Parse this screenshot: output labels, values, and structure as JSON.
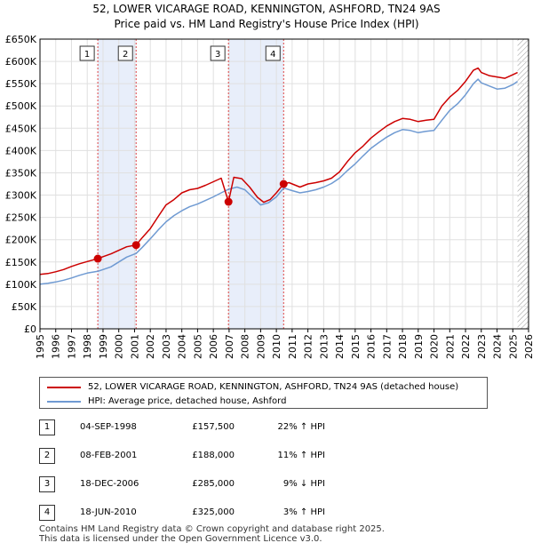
{
  "chart_data": {
    "type": "line",
    "title": "52, LOWER VICARAGE ROAD, KENNINGTON, ASHFORD, TN24 9AS",
    "subtitle": "Price paid vs. HM Land Registry's House Price Index (HPI)",
    "xlim": [
      1995,
      2026
    ],
    "ylim": [
      0,
      650000
    ],
    "x_ticks": [
      "1995",
      "1996",
      "1997",
      "1998",
      "1999",
      "2000",
      "2001",
      "2002",
      "2003",
      "2004",
      "2005",
      "2006",
      "2007",
      "2008",
      "2009",
      "2010",
      "2011",
      "2012",
      "2013",
      "2014",
      "2015",
      "2016",
      "2017",
      "2018",
      "2019",
      "2020",
      "2021",
      "2022",
      "2023",
      "2024",
      "2025",
      "2026"
    ],
    "y_ticks": [
      {
        "value": 0,
        "label": "£0"
      },
      {
        "value": 50000,
        "label": "£50K"
      },
      {
        "value": 100000,
        "label": "£100K"
      },
      {
        "value": 150000,
        "label": "£150K"
      },
      {
        "value": 200000,
        "label": "£200K"
      },
      {
        "value": 250000,
        "label": "£250K"
      },
      {
        "value": 300000,
        "label": "£300K"
      },
      {
        "value": 350000,
        "label": "£350K"
      },
      {
        "value": 400000,
        "label": "£400K"
      },
      {
        "value": 450000,
        "label": "£450K"
      },
      {
        "value": 500000,
        "label": "£500K"
      },
      {
        "value": 550000,
        "label": "£550K"
      },
      {
        "value": 600000,
        "label": "£600K"
      },
      {
        "value": 650000,
        "label": "£650K"
      }
    ],
    "series": [
      {
        "name": "52, LOWER VICARAGE ROAD, KENNINGTON, ASHFORD, TN24 9AS (detached house)",
        "color": "#cc0000",
        "x": [
          1995.0,
          1995.5,
          1996.0,
          1996.5,
          1997.0,
          1997.5,
          1998.0,
          1998.67,
          1999.0,
          1999.5,
          2000.0,
          2000.5,
          2001.1,
          2001.5,
          2002.0,
          2002.5,
          2003.0,
          2003.5,
          2004.0,
          2004.5,
          2005.0,
          2005.5,
          2006.0,
          2006.5,
          2006.96,
          2007.3,
          2007.8,
          2008.3,
          2008.8,
          2009.2,
          2009.6,
          2010.0,
          2010.46,
          2010.8,
          2011.5,
          2012.0,
          2012.5,
          2013.0,
          2013.5,
          2014.0,
          2014.5,
          2015.0,
          2015.5,
          2016.0,
          2016.5,
          2017.0,
          2017.5,
          2018.0,
          2018.5,
          2019.0,
          2019.5,
          2020.0,
          2020.5,
          2021.0,
          2021.5,
          2022.0,
          2022.5,
          2022.8,
          2023.0,
          2023.5,
          2024.0,
          2024.5,
          2025.0,
          2025.3
        ],
        "y": [
          122000,
          124000,
          128000,
          133000,
          140000,
          146000,
          151000,
          157500,
          162000,
          168000,
          176000,
          184000,
          188000,
          205000,
          225000,
          252000,
          278000,
          290000,
          305000,
          312000,
          315000,
          322000,
          330000,
          338000,
          285000,
          340000,
          337000,
          318000,
          295000,
          284000,
          290000,
          305000,
          325000,
          328000,
          318000,
          325000,
          328000,
          332000,
          338000,
          352000,
          375000,
          395000,
          410000,
          428000,
          442000,
          455000,
          465000,
          472000,
          470000,
          465000,
          468000,
          470000,
          500000,
          520000,
          535000,
          555000,
          580000,
          585000,
          575000,
          568000,
          565000,
          562000,
          570000,
          575000
        ]
      },
      {
        "name": "HPI: Average price, detached house, Ashford",
        "color": "#6f9ad2",
        "x": [
          1995.0,
          1995.5,
          1996.0,
          1996.5,
          1997.0,
          1997.5,
          1998.0,
          1998.67,
          1999.0,
          1999.5,
          2000.0,
          2000.5,
          2001.1,
          2001.5,
          2002.0,
          2002.5,
          2003.0,
          2003.5,
          2004.0,
          2004.5,
          2005.0,
          2005.5,
          2006.0,
          2006.5,
          2006.96,
          2007.5,
          2008.0,
          2008.5,
          2009.0,
          2009.5,
          2010.0,
          2010.46,
          2011.0,
          2011.5,
          2012.0,
          2012.5,
          2013.0,
          2013.5,
          2014.0,
          2014.5,
          2015.0,
          2015.5,
          2016.0,
          2016.5,
          2017.0,
          2017.5,
          2018.0,
          2018.5,
          2019.0,
          2019.5,
          2020.0,
          2020.5,
          2021.0,
          2021.5,
          2022.0,
          2022.5,
          2022.8,
          2023.0,
          2023.5,
          2024.0,
          2024.5,
          2025.0,
          2025.3
        ],
        "y": [
          100000,
          102000,
          105000,
          109000,
          114000,
          120000,
          125000,
          129000,
          133000,
          139000,
          150000,
          161000,
          169000,
          183000,
          202000,
          222000,
          240000,
          254000,
          265000,
          274000,
          280000,
          288000,
          296000,
          305000,
          313000,
          318000,
          312000,
          295000,
          278000,
          283000,
          296000,
          316000,
          310000,
          305000,
          308000,
          312000,
          318000,
          326000,
          338000,
          355000,
          370000,
          388000,
          405000,
          418000,
          430000,
          440000,
          447000,
          445000,
          440000,
          443000,
          445000,
          468000,
          490000,
          505000,
          525000,
          550000,
          560000,
          552000,
          545000,
          538000,
          540000,
          548000,
          555000
        ]
      }
    ],
    "sales": [
      {
        "num": "1",
        "x": 1998.67,
        "value": 157500,
        "date": "04-SEP-1998",
        "price": "£157,500",
        "hpi": "22% ↑ HPI"
      },
      {
        "num": "2",
        "x": 2001.1,
        "value": 188000,
        "date": "08-FEB-2001",
        "price": "£188,000",
        "hpi": "11% ↑ HPI"
      },
      {
        "num": "3",
        "x": 2006.96,
        "value": 285000,
        "date": "18-DEC-2006",
        "price": "£285,000",
        "hpi": "9% ↓ HPI"
      },
      {
        "num": "4",
        "x": 2010.46,
        "value": 325000,
        "date": "18-JUN-2010",
        "price": "£325,000",
        "hpi": "3% ↑ HPI"
      }
    ],
    "shaded_spans": [
      [
        1998.67,
        2001.1
      ],
      [
        2006.96,
        2010.46
      ]
    ],
    "forecast_from": 2025.3,
    "colors": {
      "grid": "#e0e0e0",
      "shade": "#e8eefa",
      "vline": "#dd4444",
      "hatch": "#999999"
    }
  },
  "legend": {
    "property_label": "52, LOWER VICARAGE ROAD, KENNINGTON, ASHFORD, TN24 9AS (detached house)",
    "hpi_label": "HPI: Average price, detached house, Ashford"
  },
  "footer": {
    "line1": "Contains HM Land Registry data © Crown copyright and database right 2025.",
    "line2": "This data is licensed under the Open Government Licence v3.0."
  }
}
